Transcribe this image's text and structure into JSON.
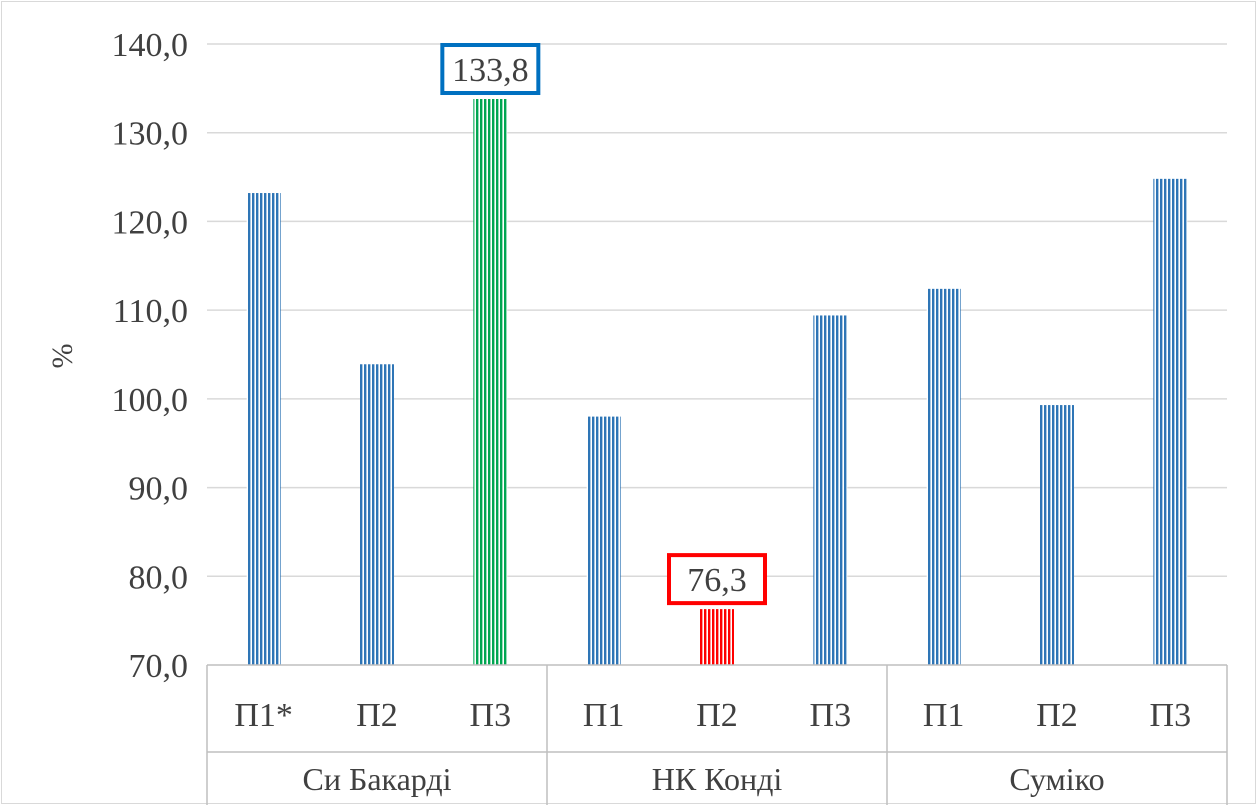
{
  "chart_data": {
    "type": "bar",
    "title": "",
    "ylabel": "%",
    "xlabel": "",
    "ylim": [
      70,
      140
    ],
    "yticks": [
      70,
      80,
      90,
      100,
      110,
      120,
      130,
      140
    ],
    "ytick_labels": [
      "70,0",
      "80,0",
      "90,0",
      "100,0",
      "110,0",
      "120,0",
      "130,0",
      "140,0"
    ],
    "grid": true,
    "legend": "none",
    "groups": [
      {
        "name": "Си Бакарді",
        "bars": [
          {
            "label": "П1*",
            "value": 123.2,
            "color": "#2e75b6"
          },
          {
            "label": "П2",
            "value": 103.9,
            "color": "#2e75b6"
          },
          {
            "label": "П3",
            "value": 133.8,
            "color": "#00a651",
            "data_label": "133,8",
            "box_color": "#0070c0"
          }
        ]
      },
      {
        "name": "НК Конді",
        "bars": [
          {
            "label": "П1",
            "value": 98.0,
            "color": "#2e75b6"
          },
          {
            "label": "П2",
            "value": 76.3,
            "color": "#ff0000",
            "data_label": "76,3",
            "box_color": "#ff0000"
          },
          {
            "label": "П3",
            "value": 109.4,
            "color": "#2e75b6"
          }
        ]
      },
      {
        "name": "Суміко",
        "bars": [
          {
            "label": "П1",
            "value": 112.4,
            "color": "#2e75b6"
          },
          {
            "label": "П2",
            "value": 99.3,
            "color": "#2e75b6"
          },
          {
            "label": "П3",
            "value": 124.8,
            "color": "#2e75b6"
          }
        ]
      }
    ]
  }
}
